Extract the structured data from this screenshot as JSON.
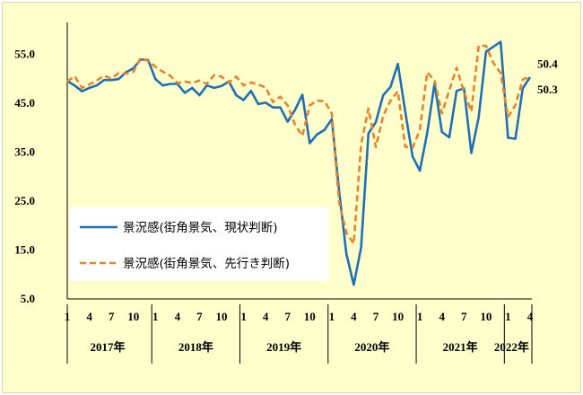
{
  "chart_data": {
    "type": "line",
    "y_ticks": [
      "55.0",
      "45.0",
      "35.0",
      "25.0",
      "15.0",
      "5.0"
    ],
    "y_tick_values": [
      55,
      45,
      35,
      25,
      15,
      5
    ],
    "ylim": [
      5,
      60
    ],
    "month_ticks": [
      "1",
      "4",
      "7",
      "10",
      "1",
      "4",
      "7",
      "10",
      "1",
      "4",
      "7",
      "10",
      "1",
      "4",
      "7",
      "10",
      "1",
      "4",
      "7",
      "10",
      "1",
      "4"
    ],
    "year_labels": [
      "2017年",
      "2018年",
      "2019年",
      "2020年",
      "2021年",
      "2022年"
    ],
    "series": [
      {
        "name": "景況感(街角景気、現状判断)",
        "color": "#1f6fb5",
        "style": "solid",
        "values": [
          49.5,
          48.6,
          47.4,
          48.1,
          48.6,
          49.7,
          49.7,
          49.9,
          51.3,
          52.1,
          53.9,
          53.8,
          49.9,
          48.6,
          48.9,
          48.9,
          47.1,
          48.1,
          46.6,
          48.6,
          48.1,
          48.5,
          49.4,
          46.6,
          45.6,
          47.5,
          44.8,
          45.1,
          44.1,
          44.1,
          41.2,
          43.6,
          46.7,
          36.8,
          38.6,
          39.5,
          41.7,
          27.2,
          14.2,
          7.9,
          15.5,
          38.8,
          41.1,
          46.6,
          48.3,
          53.0,
          43.3,
          34.1,
          31.2,
          38.9,
          49.0,
          39.1,
          38.0,
          47.5,
          48.0,
          34.8,
          42.1,
          55.5,
          56.5,
          57.5,
          37.9,
          37.7,
          48.0,
          50.3
        ],
        "end_label": "50.3"
      },
      {
        "name": "景況感(街角景気、先行き判断)",
        "color": "#e8832a",
        "style": "dashed",
        "values": [
          49.4,
          50.5,
          48.1,
          48.8,
          49.6,
          50.6,
          50.0,
          51.1,
          51.0,
          51.4,
          54.2,
          53.6,
          52.4,
          51.4,
          50.6,
          49.1,
          49.4,
          49.1,
          49.6,
          48.9,
          50.7,
          50.4,
          49.2,
          50.4,
          48.6,
          49.2,
          48.8,
          48.2,
          45.2,
          46.3,
          44.5,
          40.6,
          38.3,
          44.5,
          45.5,
          45.4,
          42.9,
          24.8,
          18.5,
          16.3,
          36.5,
          43.9,
          36.0,
          42.4,
          45.5,
          47.4,
          36.1,
          35.9,
          39.5,
          51.3,
          49.6,
          42.9,
          47.6,
          52.2,
          47.3,
          43.3,
          56.7,
          56.7,
          53.2,
          51.1,
          42.2,
          44.6,
          49.8,
          50.4
        ],
        "end_label": "50.4"
      }
    ],
    "legend_position": "lower-left"
  }
}
